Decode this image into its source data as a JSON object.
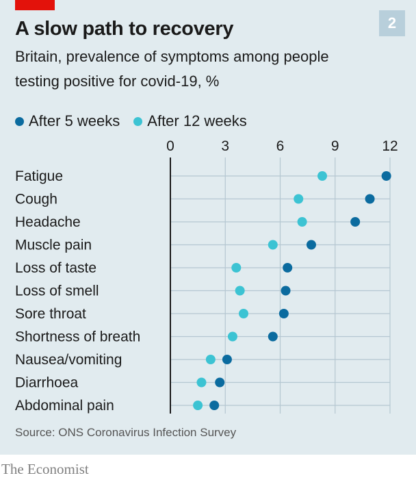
{
  "header": {
    "title": "A slow path to recovery",
    "chart_number": "2",
    "subtitle_lines": [
      "Britain, prevalence of symptoms among people",
      "testing positive for covid-19, %"
    ]
  },
  "legend": [
    {
      "label": "After 5 weeks",
      "color": "#0b6b9f"
    },
    {
      "label": "After 12 weeks",
      "color": "#3cc3d3"
    }
  ],
  "chart_data": {
    "type": "scatter",
    "title": "A slow path to recovery",
    "subtitle": "Britain, prevalence of symptoms among people testing positive for covid-19, %",
    "categories": [
      "Fatigue",
      "Cough",
      "Headache",
      "Muscle pain",
      "Loss of taste",
      "Loss of smell",
      "Sore throat",
      "Shortness of breath",
      "Nausea/vomiting",
      "Diarrhoea",
      "Abdominal pain"
    ],
    "series": [
      {
        "name": "After 5 weeks",
        "color": "#0b6b9f",
        "values": [
          11.8,
          10.9,
          10.1,
          7.7,
          6.4,
          6.3,
          6.2,
          5.6,
          3.1,
          2.7,
          2.4
        ]
      },
      {
        "name": "After 12 weeks",
        "color": "#3cc3d3",
        "values": [
          8.3,
          7.0,
          7.2,
          5.6,
          3.6,
          3.8,
          4.0,
          3.4,
          2.2,
          1.7,
          1.5
        ]
      }
    ],
    "xlim": [
      0,
      12
    ],
    "xticks": [
      0,
      3,
      6,
      9,
      12
    ],
    "grid": true,
    "legend_position": "top-left"
  },
  "source": "Source: ONS Coronavirus Infection Survey",
  "brand": "The Economist"
}
